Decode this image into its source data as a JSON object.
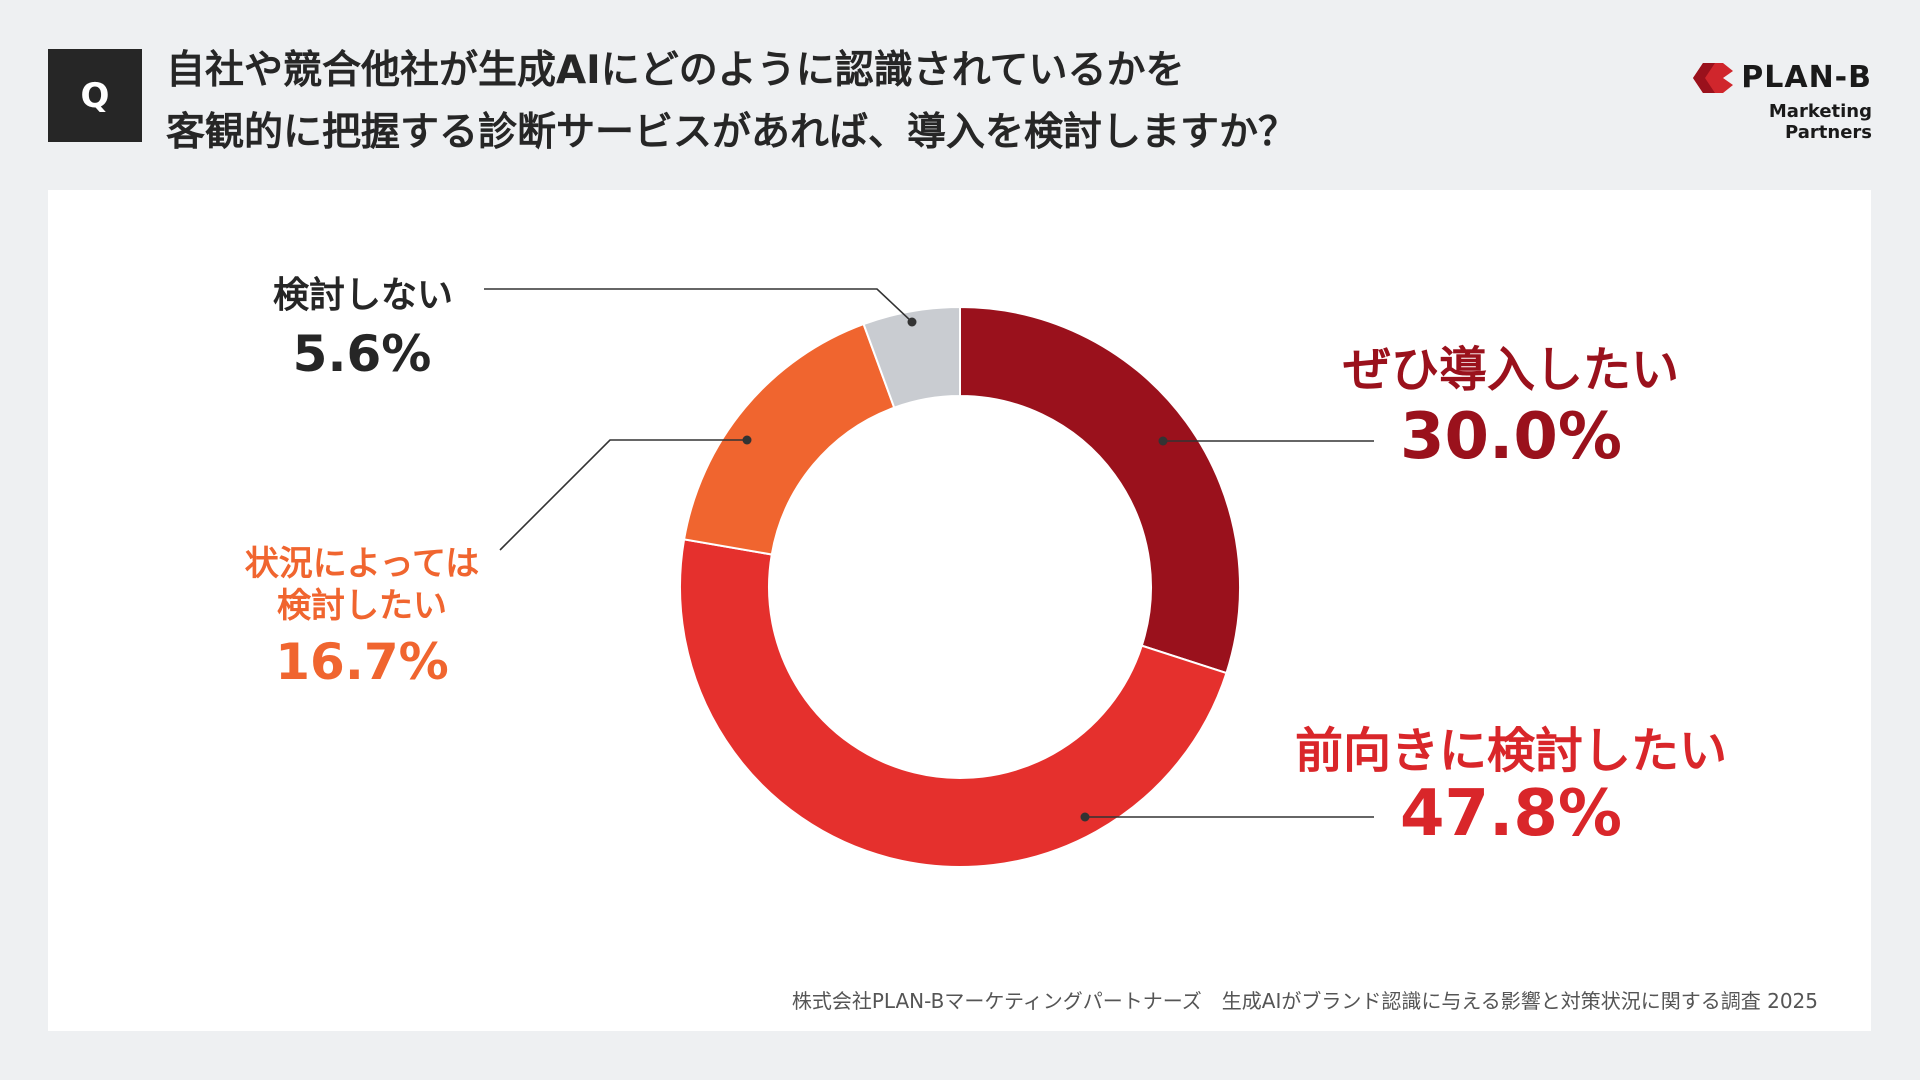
{
  "header": {
    "q_badge": "Q",
    "title_line1": "自社や競合他社が生成AIにどのように認識されているかを",
    "title_line2": "客観的に把握する診断サービスがあれば、導入を検討しますか？"
  },
  "logo": {
    "brand": "PLAN-B",
    "subtitle": "Marketing Partners",
    "color": "#d0262c"
  },
  "chart_data": {
    "type": "pie",
    "variant": "donut",
    "start": "top, clockwise",
    "slices": [
      {
        "label": "ぜひ導入したい",
        "label_lines": [
          "ぜひ導入したい"
        ],
        "value": 30.0,
        "value_label": "30.0%",
        "color": "#9a111c"
      },
      {
        "label": "前向きに検討したい",
        "label_lines": [
          "前向きに検討したい"
        ],
        "value": 47.8,
        "value_label": "47.8%",
        "color": "#e5302d"
      },
      {
        "label": "状況によっては検討したい",
        "label_lines": [
          "状況によっては",
          "検討したい"
        ],
        "value": 16.7,
        "value_label": "16.7%",
        "color": "#f0652f"
      },
      {
        "label": "検討しない",
        "label_lines": [
          "検討しない"
        ],
        "value": 5.6,
        "value_label": "5.6%",
        "color": "#c9ccd1"
      }
    ]
  },
  "footer": {
    "source": "株式会社PLAN-Bマーケティングパートナーズ　生成AIがブランド認識に与える影響と対策状況に関する調査 2025"
  }
}
